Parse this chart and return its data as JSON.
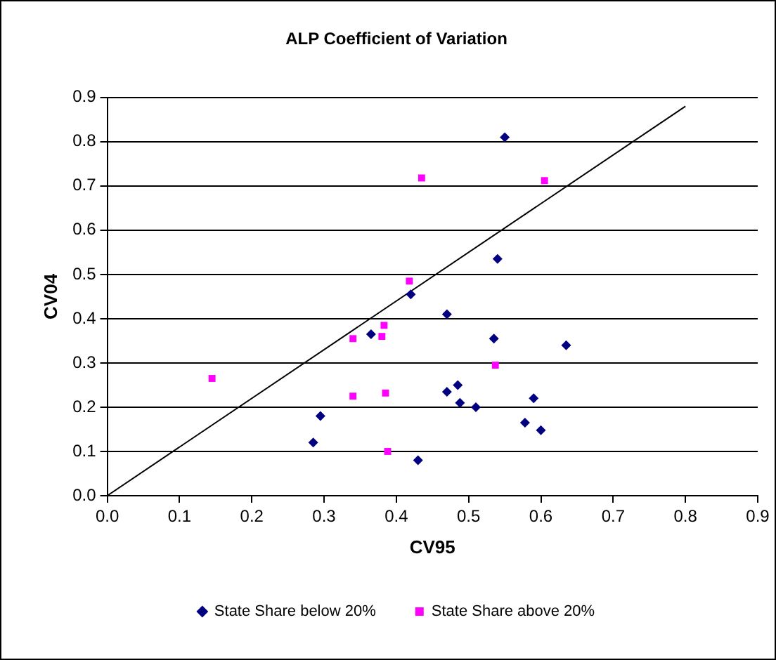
{
  "chart_data": {
    "type": "scatter",
    "title": "ALP Coefficient of Variation",
    "xlabel": "CV95",
    "ylabel": "CV04",
    "xlim": [
      0,
      0.9
    ],
    "xticks": [
      {
        "value": 0,
        "label": "0.0"
      },
      0.1,
      0.2,
      0.3,
      0.4,
      0.5,
      0.6,
      0.7,
      0.8,
      0.9
    ],
    "ylim": [
      0,
      0.9
    ],
    "yticks": [
      {
        "value": 0,
        "label": "0.0"
      },
      0.1,
      0.2,
      0.3,
      0.4,
      0.5,
      0.6,
      0.7,
      0.8,
      0.9
    ],
    "grid": "y",
    "legend": "bottom",
    "series": [
      {
        "name": "State Share below 20%",
        "color": "#000080",
        "marker": "diamond",
        "x": [
          0.285,
          0.295,
          0.365,
          0.42,
          0.43,
          0.47,
          0.47,
          0.485,
          0.488,
          0.51,
          0.535,
          0.54,
          0.55,
          0.578,
          0.59,
          0.6,
          0.635
        ],
        "values": [
          0.12,
          0.18,
          0.365,
          0.455,
          0.08,
          0.41,
          0.235,
          0.25,
          0.21,
          0.2,
          0.355,
          0.535,
          0.81,
          0.165,
          0.22,
          0.148,
          0.34
        ]
      },
      {
        "name": "State Share above 20%",
        "color": "#ff00ff",
        "marker": "square",
        "x": [
          0.145,
          0.34,
          0.34,
          0.38,
          0.383,
          0.385,
          0.388,
          0.418,
          0.435,
          0.537,
          0.605
        ],
        "values": [
          0.265,
          0.355,
          0.225,
          0.36,
          0.385,
          0.232,
          0.1,
          0.485,
          0.718,
          0.295,
          0.712
        ]
      },
      {
        "type": "line",
        "color": "#000000",
        "marker": "none",
        "x": [
          0,
          0.8
        ],
        "values": [
          0,
          0.88
        ]
      }
    ]
  }
}
